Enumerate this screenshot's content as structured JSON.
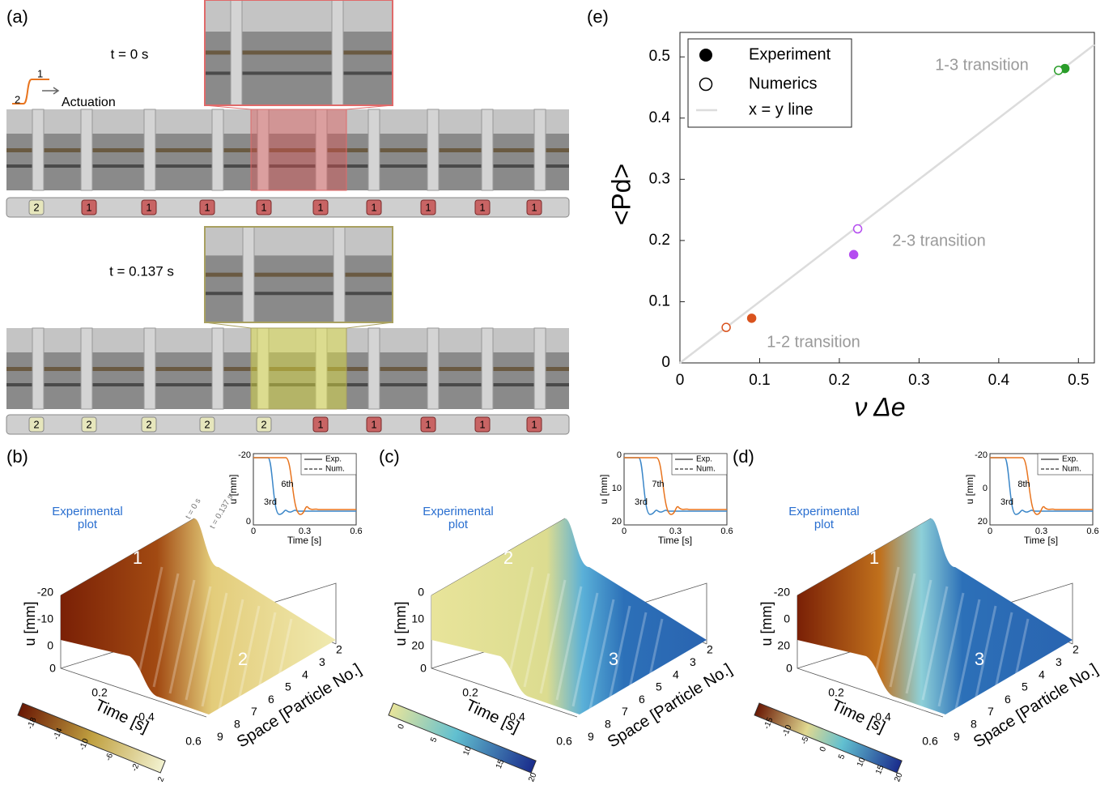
{
  "panel_labels": [
    "(a)",
    "(b)",
    "(c)",
    "(d)",
    "(e)"
  ],
  "panel_a": {
    "snapshots": [
      {
        "time": "t = 0 s",
        "states": [
          "2",
          "1",
          "1",
          "1",
          "1",
          "1",
          "1",
          "1",
          "1",
          "1"
        ]
      },
      {
        "time": "t = 0.137 s",
        "states": [
          "2",
          "2",
          "2",
          "2",
          "2",
          "1",
          "1",
          "1",
          "1",
          "1"
        ]
      }
    ],
    "actuation": {
      "label": "Actuation",
      "from": "2",
      "to": "1"
    }
  },
  "surfaces": [
    {
      "annotation": [
        "Experimental",
        "plot"
      ],
      "phases": [
        "1",
        "2"
      ],
      "z_label": "u [mm]",
      "z_ticks": [
        "-20",
        "-10",
        "0"
      ],
      "time_label": "Time [s]",
      "time_ticks": [
        "0",
        "0.2",
        "0.4",
        "0.6"
      ],
      "space_label": "Space [Particle No.]",
      "space_ticks": [
        "2",
        "3",
        "4",
        "5",
        "6",
        "7",
        "8",
        "9"
      ],
      "colorbar_ticks": [
        "-18",
        "-14",
        "-10",
        "-6",
        "-2",
        "2"
      ],
      "time_marks": [
        "t = 0 s",
        "t = 0.137 s"
      ],
      "inset": {
        "y_label": "u [mm]",
        "y_ticks": [
          "-20",
          "0"
        ],
        "x_label": "Time [s]",
        "x_ticks": [
          "0",
          "0.3",
          "0.6"
        ],
        "legend": [
          "Exp.",
          "Num."
        ],
        "curves": [
          "6th",
          "3rd"
        ]
      }
    },
    {
      "annotation": [
        "Experimental",
        "plot"
      ],
      "phases": [
        "2",
        "3"
      ],
      "z_label": "u [mm]",
      "z_ticks": [
        "0",
        "10",
        "20"
      ],
      "time_label": "Time [s]",
      "time_ticks": [
        "0",
        "0.2",
        "0.4",
        "0.6"
      ],
      "space_label": "Space [Particle No.]",
      "space_ticks": [
        "2",
        "3",
        "4",
        "5",
        "6",
        "7",
        "8",
        "9"
      ],
      "colorbar_ticks": [
        "0",
        "5",
        "10",
        "15",
        "20"
      ],
      "inset": {
        "y_label": "u [mm]",
        "y_ticks": [
          "0",
          "10",
          "20"
        ],
        "x_label": "Time [s]",
        "x_ticks": [
          "0",
          "0.3",
          "0.6"
        ],
        "legend": [
          "Exp.",
          "Num."
        ],
        "curves": [
          "7th",
          "3rd"
        ]
      }
    },
    {
      "annotation": [
        "Experimental",
        "plot"
      ],
      "phases": [
        "1",
        "3"
      ],
      "z_label": "u [mm]",
      "z_ticks": [
        "-20",
        "0",
        "20"
      ],
      "time_label": "Time [s]",
      "time_ticks": [
        "0",
        "0.2",
        "0.4",
        "0.6"
      ],
      "space_label": "Space [Particle No.]",
      "space_ticks": [
        "2",
        "3",
        "4",
        "5",
        "6",
        "7",
        "8",
        "9"
      ],
      "colorbar_ticks": [
        "-15",
        "-10",
        "-5",
        "0",
        "5",
        "10",
        "15",
        "20"
      ],
      "inset": {
        "y_label": "u [mm]",
        "y_ticks": [
          "-20",
          "0",
          "20"
        ],
        "x_label": "Time [s]",
        "x_ticks": [
          "0",
          "0.3",
          "0.6"
        ],
        "legend": [
          "Exp.",
          "Num."
        ],
        "curves": [
          "8th",
          "3rd"
        ]
      }
    }
  ],
  "chart_data": {
    "type": "scatter",
    "x_label": "ν Δe",
    "y_label": "<Pd>",
    "xlim": [
      0,
      0.52
    ],
    "ylim": [
      0,
      0.54
    ],
    "xticks": [
      0,
      0.1,
      0.2,
      0.3,
      0.4,
      0.5
    ],
    "yticks": [
      0,
      0.1,
      0.2,
      0.3,
      0.4,
      0.5
    ],
    "series": [
      {
        "name": "Experiment",
        "marker": "filled",
        "x": [
          0.09,
          0.218,
          0.483
        ],
        "values": [
          0.073,
          0.177,
          0.481
        ],
        "colors": [
          "#d9531e",
          "#b44cf0",
          "#2a9d2a"
        ]
      },
      {
        "name": "Numerics",
        "marker": "open",
        "x": [
          0.058,
          0.223,
          0.475
        ],
        "values": [
          0.058,
          0.219,
          0.478
        ],
        "colors": [
          "#d9531e",
          "#b44cf0",
          "#2a9d2a"
        ]
      }
    ],
    "reference_line": {
      "name": "x = y line",
      "color": "#dcdcdc"
    },
    "annotations": [
      "1-3 transition",
      "2-3 transition",
      "1-2 transition"
    ],
    "legend": "upper left"
  }
}
